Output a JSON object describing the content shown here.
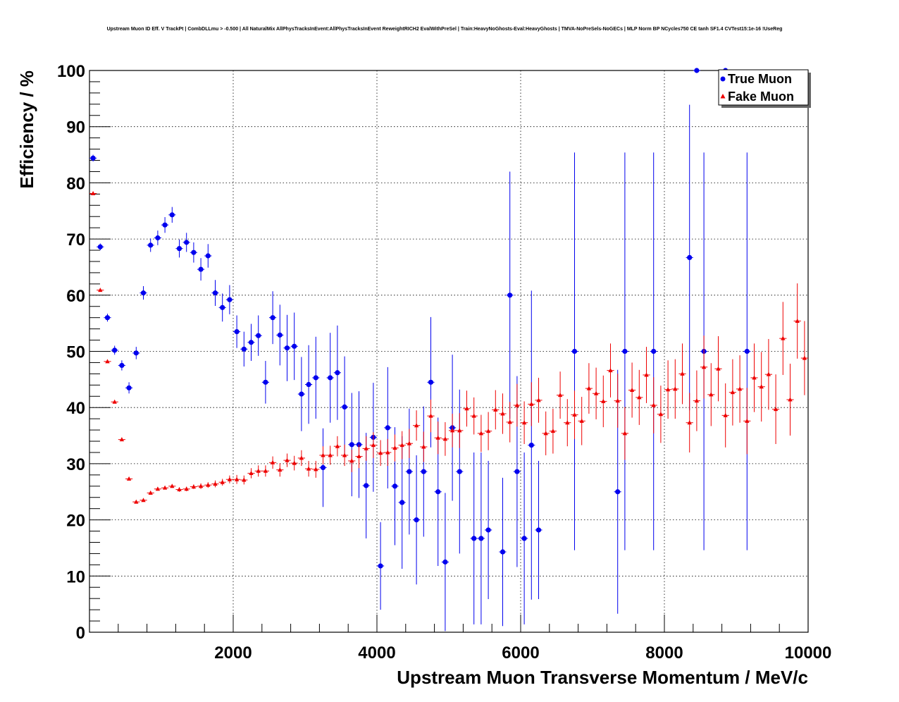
{
  "chart_data": {
    "type": "scatter",
    "title": "Upstream Muon ID Eff. V TrackPt | CombDLLmu > -0.500 | All NaturalMix AllPhysTracksInEvent:AllPhysTracksInEvent ReweightRICH2 EvalWithPreSel | Train:HeavyNoGhosts-Eval:HeavyGhosts | TMVA-NoPreSels-NoGECs | MLP Norm BP NCycles750 CE tanh SF1.4 CVTest15:1e-16 !UseReg",
    "xlabel": "Upstream Muon Transverse Momentum / MeV/c",
    "ylabel": "Efficiency / %",
    "xlim": [
      0,
      10000
    ],
    "ylim": [
      0,
      100
    ],
    "xticks": [
      2000,
      4000,
      6000,
      8000,
      10000
    ],
    "xtick_labels": [
      "2000",
      "4000",
      "6000",
      "8000",
      "10000"
    ],
    "yticks": [
      0,
      10,
      20,
      30,
      40,
      50,
      60,
      70,
      80,
      90,
      100
    ],
    "ytick_labels": [
      "0",
      "10",
      "20",
      "30",
      "40",
      "50",
      "60",
      "70",
      "80",
      "90",
      "100"
    ],
    "grid": true,
    "legend_position": "top-right",
    "series": [
      {
        "name": "True Muon",
        "color": "#0000ee",
        "marker": "circle",
        "points": [
          {
            "x": 50,
            "y": 84.4,
            "err": 0.6
          },
          {
            "x": 150,
            "y": 68.6,
            "err": 0.6
          },
          {
            "x": 250,
            "y": 56.0,
            "err": 0.7
          },
          {
            "x": 350,
            "y": 50.2,
            "err": 0.8
          },
          {
            "x": 450,
            "y": 47.5,
            "err": 0.9
          },
          {
            "x": 550,
            "y": 43.5,
            "err": 1.0
          },
          {
            "x": 650,
            "y": 49.7,
            "err": 1.1
          },
          {
            "x": 750,
            "y": 60.4,
            "err": 1.2
          },
          {
            "x": 850,
            "y": 68.9,
            "err": 1.2
          },
          {
            "x": 950,
            "y": 70.2,
            "err": 1.3
          },
          {
            "x": 1050,
            "y": 72.5,
            "err": 1.4
          },
          {
            "x": 1150,
            "y": 74.3,
            "err": 1.4
          },
          {
            "x": 1250,
            "y": 68.3,
            "err": 1.6
          },
          {
            "x": 1350,
            "y": 69.4,
            "err": 1.7
          },
          {
            "x": 1450,
            "y": 67.6,
            "err": 1.8
          },
          {
            "x": 1550,
            "y": 64.6,
            "err": 2.0
          },
          {
            "x": 1650,
            "y": 67.0,
            "err": 2.1
          },
          {
            "x": 1750,
            "y": 60.4,
            "err": 2.3
          },
          {
            "x": 1850,
            "y": 57.8,
            "err": 2.5
          },
          {
            "x": 1950,
            "y": 59.2,
            "err": 2.6
          },
          {
            "x": 2050,
            "y": 53.5,
            "err": 2.9
          },
          {
            "x": 2150,
            "y": 50.4,
            "err": 3.1
          },
          {
            "x": 2250,
            "y": 51.6,
            "err": 3.3
          },
          {
            "x": 2350,
            "y": 52.8,
            "err": 3.6
          },
          {
            "x": 2450,
            "y": 44.5,
            "err": 3.8
          },
          {
            "x": 2550,
            "y": 56.0,
            "err": 4.7
          },
          {
            "x": 2650,
            "y": 52.9,
            "err": 5.4
          },
          {
            "x": 2750,
            "y": 50.6,
            "err": 5.9
          },
          {
            "x": 2850,
            "y": 50.9,
            "err": 6.0
          },
          {
            "x": 2950,
            "y": 42.4,
            "err": 6.6
          },
          {
            "x": 3050,
            "y": 44.1,
            "err": 7.0
          },
          {
            "x": 3150,
            "y": 45.3,
            "err": 7.3
          },
          {
            "x": 3250,
            "y": 29.3,
            "err": 7.0
          },
          {
            "x": 3350,
            "y": 45.3,
            "err": 8.0
          },
          {
            "x": 3450,
            "y": 46.2,
            "err": 8.4
          },
          {
            "x": 3550,
            "y": 40.1,
            "err": 9.0
          },
          {
            "x": 3650,
            "y": 33.4,
            "err": 9.2
          },
          {
            "x": 3750,
            "y": 33.4,
            "err": 9.5
          },
          {
            "x": 3850,
            "y": 26.1,
            "err": 9.4
          },
          {
            "x": 3950,
            "y": 34.7,
            "err": 9.7
          },
          {
            "x": 4050,
            "y": 11.8,
            "err": 7.8
          },
          {
            "x": 4150,
            "y": 36.4,
            "err": 10.8
          },
          {
            "x": 4250,
            "y": 26.0,
            "err": 10.5
          },
          {
            "x": 4350,
            "y": 23.1,
            "err": 11.8
          },
          {
            "x": 4450,
            "y": 28.6,
            "err": 11.2
          },
          {
            "x": 4550,
            "y": 20.0,
            "err": 11.5
          },
          {
            "x": 4650,
            "y": 28.6,
            "err": 11.6
          },
          {
            "x": 4750,
            "y": 44.5,
            "err": 11.6
          },
          {
            "x": 4850,
            "y": 25.0,
            "err": 13.2
          },
          {
            "x": 4950,
            "y": 12.5,
            "err": 12.3
          },
          {
            "x": 5050,
            "y": 36.4,
            "err": 13.0
          },
          {
            "x": 5150,
            "y": 28.6,
            "err": 14.6
          },
          {
            "x": 5350,
            "y": 16.7,
            "err": 15.3
          },
          {
            "x": 5450,
            "y": 16.7,
            "err": 15.3
          },
          {
            "x": 5550,
            "y": 18.2,
            "err": 12.3
          },
          {
            "x": 5750,
            "y": 14.3,
            "err": 13.2
          },
          {
            "x": 5850,
            "y": 60.0,
            "err": 22.0
          },
          {
            "x": 5950,
            "y": 28.6,
            "err": 17.0
          },
          {
            "x": 6050,
            "y": 16.7,
            "err": 15.3
          },
          {
            "x": 6150,
            "y": 33.3,
            "err": 27.5
          },
          {
            "x": 6250,
            "y": 18.2,
            "err": 12.3
          },
          {
            "x": 6750,
            "y": 50.0,
            "err": 35.4
          },
          {
            "x": 7350,
            "y": 25.0,
            "err": 21.7
          },
          {
            "x": 7450,
            "y": 50.0,
            "err": 35.4
          },
          {
            "x": 7850,
            "y": 50.0,
            "err": 35.4
          },
          {
            "x": 8350,
            "y": 66.7,
            "err": 27.2
          },
          {
            "x": 8450,
            "y": 100.0,
            "err": 0
          },
          {
            "x": 8550,
            "y": 50.0,
            "err": 35.4
          },
          {
            "x": 8850,
            "y": 100.0,
            "err": 0
          },
          {
            "x": 9150,
            "y": 50.0,
            "err": 35.4
          }
        ]
      },
      {
        "name": "Fake Muon",
        "color": "#ee0000",
        "marker": "triangle",
        "points": [
          {
            "x": 50,
            "y": 78.1,
            "err": 0.2
          },
          {
            "x": 150,
            "y": 60.9,
            "err": 0.2
          },
          {
            "x": 250,
            "y": 48.2,
            "err": 0.2
          },
          {
            "x": 350,
            "y": 41.0,
            "err": 0.2
          },
          {
            "x": 450,
            "y": 34.3,
            "err": 0.2
          },
          {
            "x": 550,
            "y": 27.3,
            "err": 0.2
          },
          {
            "x": 650,
            "y": 23.2,
            "err": 0.2
          },
          {
            "x": 750,
            "y": 23.5,
            "err": 0.2
          },
          {
            "x": 850,
            "y": 24.8,
            "err": 0.3
          },
          {
            "x": 950,
            "y": 25.5,
            "err": 0.3
          },
          {
            "x": 1050,
            "y": 25.7,
            "err": 0.3
          },
          {
            "x": 1150,
            "y": 26.0,
            "err": 0.3
          },
          {
            "x": 1250,
            "y": 25.4,
            "err": 0.4
          },
          {
            "x": 1350,
            "y": 25.5,
            "err": 0.4
          },
          {
            "x": 1450,
            "y": 25.9,
            "err": 0.4
          },
          {
            "x": 1550,
            "y": 26.0,
            "err": 0.5
          },
          {
            "x": 1650,
            "y": 26.2,
            "err": 0.5
          },
          {
            "x": 1750,
            "y": 26.4,
            "err": 0.6
          },
          {
            "x": 1850,
            "y": 26.7,
            "err": 0.6
          },
          {
            "x": 1950,
            "y": 27.2,
            "err": 0.7
          },
          {
            "x": 2050,
            "y": 27.2,
            "err": 0.8
          },
          {
            "x": 2150,
            "y": 27.1,
            "err": 0.8
          },
          {
            "x": 2250,
            "y": 28.3,
            "err": 0.9
          },
          {
            "x": 2350,
            "y": 28.7,
            "err": 1.0
          },
          {
            "x": 2450,
            "y": 28.7,
            "err": 1.0
          },
          {
            "x": 2550,
            "y": 30.2,
            "err": 1.1
          },
          {
            "x": 2650,
            "y": 28.9,
            "err": 1.2
          },
          {
            "x": 2750,
            "y": 30.6,
            "err": 1.2
          },
          {
            "x": 2850,
            "y": 30.1,
            "err": 1.3
          },
          {
            "x": 2950,
            "y": 31.0,
            "err": 1.4
          },
          {
            "x": 3050,
            "y": 29.1,
            "err": 1.4
          },
          {
            "x": 3150,
            "y": 29.0,
            "err": 1.5
          },
          {
            "x": 3250,
            "y": 31.5,
            "err": 1.6
          },
          {
            "x": 3350,
            "y": 31.5,
            "err": 1.7
          },
          {
            "x": 3450,
            "y": 33.1,
            "err": 1.8
          },
          {
            "x": 3550,
            "y": 31.5,
            "err": 1.9
          },
          {
            "x": 3650,
            "y": 30.5,
            "err": 2.0
          },
          {
            "x": 3750,
            "y": 31.3,
            "err": 2.1
          },
          {
            "x": 3850,
            "y": 32.7,
            "err": 2.2
          },
          {
            "x": 3950,
            "y": 33.3,
            "err": 2.3
          },
          {
            "x": 4050,
            "y": 31.9,
            "err": 2.3
          },
          {
            "x": 4150,
            "y": 32.0,
            "err": 2.4
          },
          {
            "x": 4250,
            "y": 32.8,
            "err": 2.4
          },
          {
            "x": 4350,
            "y": 33.3,
            "err": 2.5
          },
          {
            "x": 4450,
            "y": 33.6,
            "err": 2.6
          },
          {
            "x": 4550,
            "y": 36.8,
            "err": 2.7
          },
          {
            "x": 4650,
            "y": 33.0,
            "err": 2.7
          },
          {
            "x": 4750,
            "y": 38.5,
            "err": 2.9
          },
          {
            "x": 4850,
            "y": 34.6,
            "err": 2.9
          },
          {
            "x": 4950,
            "y": 34.4,
            "err": 3.0
          },
          {
            "x": 5050,
            "y": 35.9,
            "err": 3.0
          },
          {
            "x": 5150,
            "y": 35.9,
            "err": 3.1
          },
          {
            "x": 5250,
            "y": 39.8,
            "err": 3.2
          },
          {
            "x": 5350,
            "y": 38.5,
            "err": 3.3
          },
          {
            "x": 5450,
            "y": 35.4,
            "err": 3.3
          },
          {
            "x": 5550,
            "y": 35.8,
            "err": 3.4
          },
          {
            "x": 5650,
            "y": 39.6,
            "err": 3.5
          },
          {
            "x": 5750,
            "y": 38.9,
            "err": 3.6
          },
          {
            "x": 5850,
            "y": 37.4,
            "err": 3.6
          },
          {
            "x": 5950,
            "y": 40.4,
            "err": 3.8
          },
          {
            "x": 6050,
            "y": 37.3,
            "err": 3.8
          },
          {
            "x": 6150,
            "y": 40.6,
            "err": 3.9
          },
          {
            "x": 6250,
            "y": 41.3,
            "err": 4.0
          },
          {
            "x": 6350,
            "y": 35.4,
            "err": 3.9
          },
          {
            "x": 6450,
            "y": 35.8,
            "err": 4.0
          },
          {
            "x": 6550,
            "y": 42.2,
            "err": 4.2
          },
          {
            "x": 6650,
            "y": 37.3,
            "err": 4.2
          },
          {
            "x": 6750,
            "y": 38.7,
            "err": 4.3
          },
          {
            "x": 6850,
            "y": 37.6,
            "err": 4.3
          },
          {
            "x": 6950,
            "y": 43.4,
            "err": 4.5
          },
          {
            "x": 7050,
            "y": 42.5,
            "err": 4.6
          },
          {
            "x": 7150,
            "y": 41.1,
            "err": 4.6
          },
          {
            "x": 7250,
            "y": 46.6,
            "err": 4.8
          },
          {
            "x": 7350,
            "y": 41.2,
            "err": 4.8
          },
          {
            "x": 7450,
            "y": 35.4,
            "err": 4.7
          },
          {
            "x": 7550,
            "y": 43.1,
            "err": 4.9
          },
          {
            "x": 7650,
            "y": 41.8,
            "err": 4.9
          },
          {
            "x": 7750,
            "y": 45.8,
            "err": 5.0
          },
          {
            "x": 7850,
            "y": 40.4,
            "err": 5.0
          },
          {
            "x": 7950,
            "y": 38.8,
            "err": 5.1
          },
          {
            "x": 8050,
            "y": 43.2,
            "err": 5.2
          },
          {
            "x": 8150,
            "y": 43.3,
            "err": 5.3
          },
          {
            "x": 8250,
            "y": 46.0,
            "err": 5.4
          },
          {
            "x": 8350,
            "y": 37.3,
            "err": 5.3
          },
          {
            "x": 8450,
            "y": 41.2,
            "err": 5.4
          },
          {
            "x": 8550,
            "y": 47.2,
            "err": 5.6
          },
          {
            "x": 8650,
            "y": 42.3,
            "err": 5.6
          },
          {
            "x": 8750,
            "y": 46.9,
            "err": 5.8
          },
          {
            "x": 8850,
            "y": 38.6,
            "err": 5.7
          },
          {
            "x": 8950,
            "y": 42.7,
            "err": 5.9
          },
          {
            "x": 9050,
            "y": 43.3,
            "err": 6.0
          },
          {
            "x": 9150,
            "y": 37.6,
            "err": 5.9
          },
          {
            "x": 9250,
            "y": 45.3,
            "err": 6.1
          },
          {
            "x": 9350,
            "y": 43.7,
            "err": 6.2
          },
          {
            "x": 9450,
            "y": 45.9,
            "err": 6.3
          },
          {
            "x": 9550,
            "y": 39.7,
            "err": 6.2
          },
          {
            "x": 9650,
            "y": 52.3,
            "err": 6.5
          },
          {
            "x": 9750,
            "y": 41.4,
            "err": 6.4
          },
          {
            "x": 9850,
            "y": 55.4,
            "err": 6.7
          },
          {
            "x": 9950,
            "y": 48.8,
            "err": 6.6
          }
        ]
      }
    ]
  }
}
